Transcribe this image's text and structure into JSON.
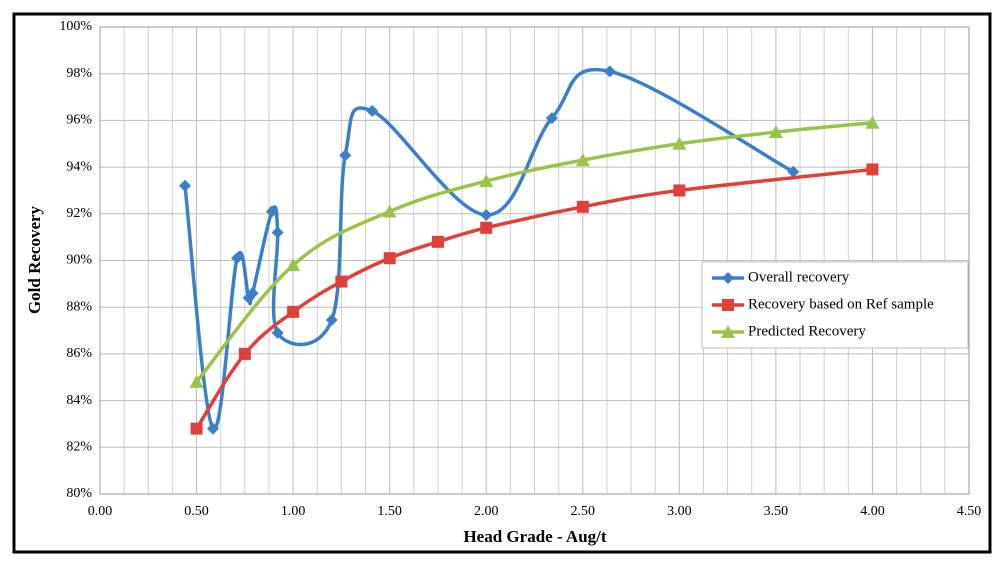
{
  "chart_data": {
    "type": "line",
    "x_label": "Head Grade - Aug/t",
    "y_label": "Gold Recovery",
    "xlim": [
      0,
      4.5
    ],
    "ylim": [
      80,
      100
    ],
    "xticks": [
      {
        "value": 0,
        "label": "0.00"
      },
      {
        "value": 0.5,
        "label": "0.50"
      },
      {
        "value": 1,
        "label": "1.00"
      },
      {
        "value": 1.5,
        "label": "1.50"
      },
      {
        "value": 2,
        "label": "2.00"
      },
      {
        "value": 2.5,
        "label": "2.50"
      },
      {
        "value": 3,
        "label": "3.00"
      },
      {
        "value": 3.5,
        "label": "3.50"
      },
      {
        "value": 4,
        "label": "4.00"
      },
      {
        "value": 4.5,
        "label": "4.50"
      }
    ],
    "yticks": [
      {
        "value": 80,
        "label": "80%"
      },
      {
        "value": 82,
        "label": "82%"
      },
      {
        "value": 84,
        "label": "84%"
      },
      {
        "value": 86,
        "label": "86%"
      },
      {
        "value": 88,
        "label": "88%"
      },
      {
        "value": 90,
        "label": "90%"
      },
      {
        "value": 92,
        "label": "92%"
      },
      {
        "value": 94,
        "label": "94%"
      },
      {
        "value": 96,
        "label": "96%"
      },
      {
        "value": 98,
        "label": "98%"
      },
      {
        "value": 100,
        "label": "100%"
      }
    ],
    "grid": true,
    "legend": "right",
    "series": [
      {
        "name": "Overall recovery",
        "color": "#3d7fc4",
        "marker": "diamond",
        "x": [
          0.44,
          0.585,
          0.71,
          0.77,
          0.79,
          0.89,
          0.92,
          0.92,
          1.2,
          1.27,
          1.41,
          2.0,
          2.34,
          2.64,
          3.59
        ],
        "values": [
          93.2,
          82.8,
          90.1,
          88.4,
          88.6,
          92.1,
          91.2,
          86.9,
          87.45,
          94.5,
          96.4,
          91.95,
          96.1,
          98.1,
          93.8
        ]
      },
      {
        "name": "Recovery based on Ref sample",
        "color": "#e0403a",
        "marker": "square",
        "x": [
          0.5,
          0.75,
          1.0,
          1.25,
          1.5,
          1.75,
          2.0,
          2.5,
          3.0,
          4.0
        ],
        "values": [
          82.8,
          86.0,
          87.8,
          89.1,
          90.1,
          90.8,
          91.4,
          92.3,
          93.0,
          93.9
        ]
      },
      {
        "name": "Predicted Recovery",
        "color": "#9bc34a",
        "marker": "triangle",
        "x": [
          0.5,
          1.0,
          1.5,
          2.0,
          2.5,
          3.0,
          3.5,
          4.0
        ],
        "values": [
          84.8,
          89.8,
          92.1,
          93.4,
          94.3,
          95.0,
          95.5,
          95.9
        ]
      }
    ]
  }
}
